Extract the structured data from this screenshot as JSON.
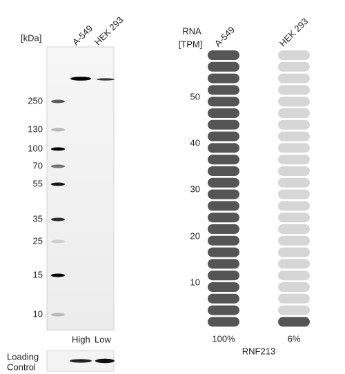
{
  "blot": {
    "unit": "[kDa]",
    "lanes": [
      "A-549",
      "HEK 293"
    ],
    "markers": [
      "250",
      "130",
      "100",
      "70",
      "55",
      "35",
      "25",
      "15",
      "10"
    ],
    "levels": [
      "High",
      "Low"
    ],
    "loading_control": [
      "Loading",
      "Control"
    ]
  },
  "rna": {
    "axis_label": [
      "RNA",
      "[TPM]"
    ],
    "ticks": [
      "10",
      "20",
      "30",
      "40",
      "50"
    ],
    "samples": [
      {
        "name": "A-549",
        "percent": "100%"
      },
      {
        "name": "HEK 293",
        "percent": "6%"
      }
    ],
    "gene": "RNF213"
  }
}
